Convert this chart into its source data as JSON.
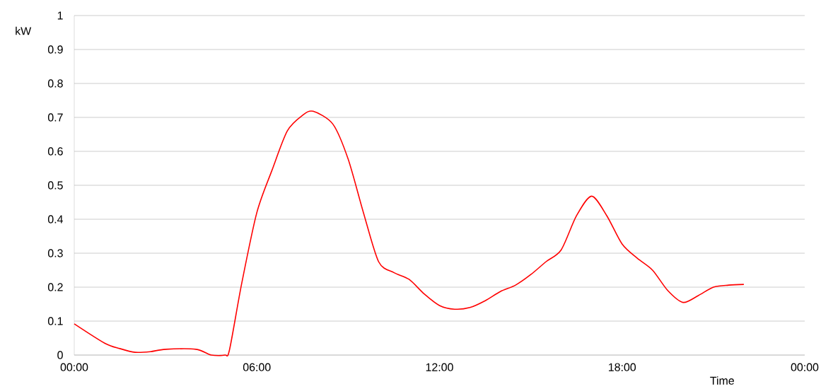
{
  "chart_data": {
    "type": "line",
    "xlabel": "Time",
    "ylabel": "kW",
    "x": [
      0,
      1,
      1.5,
      2,
      2.5,
      3,
      4,
      4.5,
      4.95,
      5.1,
      5.5,
      6,
      6.5,
      7,
      7.5,
      7.85,
      8.5,
      9,
      9.5,
      10,
      10.5,
      11,
      11.5,
      12,
      12.5,
      13,
      13.5,
      14,
      14.5,
      15,
      15.5,
      16,
      16.5,
      17,
      17.5,
      18,
      18.5,
      19,
      19.5,
      20,
      20.5,
      21,
      21.5,
      22
    ],
    "series": [
      {
        "color": "#ff0000",
        "values": [
          0.092,
          0.035,
          0.019,
          0.008,
          0.01,
          0.017,
          0.017,
          0.0,
          0.0,
          0.015,
          0.21,
          0.42,
          0.545,
          0.66,
          0.706,
          0.718,
          0.68,
          0.577,
          0.42,
          0.275,
          0.243,
          0.223,
          0.18,
          0.146,
          0.135,
          0.14,
          0.16,
          0.187,
          0.206,
          0.237,
          0.275,
          0.31,
          0.41,
          0.468,
          0.41,
          0.327,
          0.285,
          0.25,
          0.19,
          0.155,
          0.175,
          0.2,
          0.206,
          0.208
        ]
      }
    ],
    "xlim": [
      0,
      24
    ],
    "ylim": [
      0,
      1
    ],
    "xticks": [
      {
        "value": 0,
        "label": "00:00"
      },
      {
        "value": 6,
        "label": "06:00"
      },
      {
        "value": 12,
        "label": "12:00"
      },
      {
        "value": 18,
        "label": "18:00"
      },
      {
        "value": 24,
        "label": "00:00"
      }
    ],
    "yticks": [
      0,
      0.1,
      0.2,
      0.3,
      0.4,
      0.5,
      0.6,
      0.7,
      0.8,
      0.9,
      1
    ],
    "grid": "y",
    "marker": "none",
    "line_style": "solid"
  }
}
